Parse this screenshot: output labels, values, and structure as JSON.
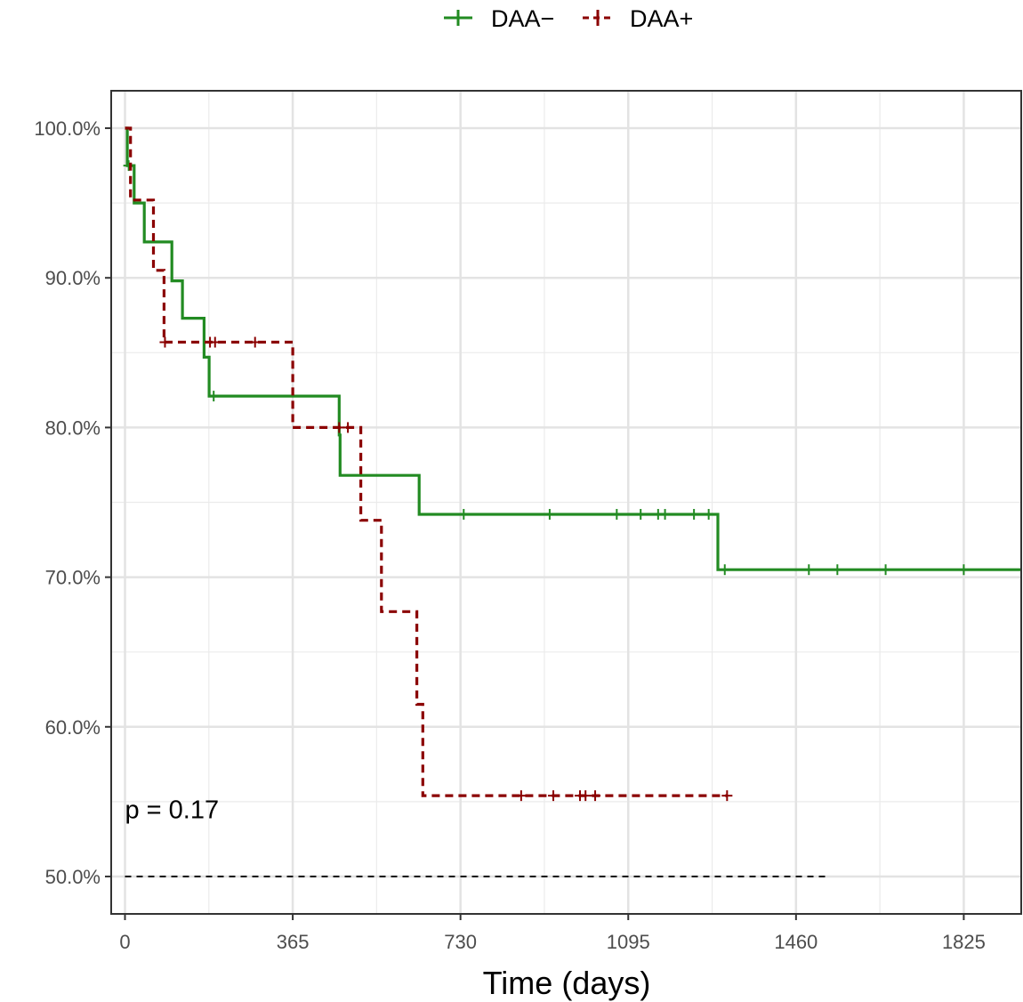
{
  "chart_data": {
    "type": "line",
    "subtype": "kaplan-meier survival curve",
    "xlabel": "Time (days)",
    "ylabel": "",
    "xlim": [
      -30,
      1950
    ],
    "ylim": [
      47.5,
      102.5
    ],
    "x_ticks": [
      0,
      365,
      730,
      1095,
      1460,
      1825
    ],
    "x_tick_labels": [
      "0",
      "365",
      "730",
      "1095",
      "1460",
      "1825"
    ],
    "y_ticks": [
      50,
      60,
      70,
      80,
      90,
      100
    ],
    "y_tick_labels": [
      "50.0%",
      "60.0%",
      "70.0%",
      "80.0%",
      "90.0%",
      "100.0%"
    ],
    "grid": true,
    "legend_position": "top",
    "series": [
      {
        "name": "DAA−",
        "color": "#228b22",
        "line_style": "solid",
        "steps": [
          [
            0,
            100.0
          ],
          [
            5,
            97.5
          ],
          [
            20,
            95.0
          ],
          [
            42,
            92.4
          ],
          [
            102,
            89.8
          ],
          [
            125,
            87.3
          ],
          [
            172,
            84.7
          ],
          [
            183,
            82.1
          ],
          [
            466,
            79.5
          ],
          [
            468,
            76.8
          ],
          [
            640,
            74.2
          ],
          [
            1290,
            70.5
          ],
          [
            1950,
            70.5
          ]
        ],
        "censored": [
          [
            8,
            97.5
          ],
          [
            193,
            82.1
          ],
          [
            737,
            74.2
          ],
          [
            924,
            74.2
          ],
          [
            1070,
            74.2
          ],
          [
            1122,
            74.2
          ],
          [
            1160,
            74.2
          ],
          [
            1175,
            74.2
          ],
          [
            1238,
            74.2
          ],
          [
            1270,
            74.2
          ],
          [
            1305,
            70.5
          ],
          [
            1488,
            70.5
          ],
          [
            1550,
            70.5
          ],
          [
            1655,
            70.5
          ],
          [
            1825,
            70.5
          ]
        ]
      },
      {
        "name": "DAA+",
        "color": "#8b0000",
        "line_style": "dashed",
        "steps": [
          [
            0,
            100.0
          ],
          [
            12,
            95.2
          ],
          [
            62,
            90.5
          ],
          [
            85,
            85.7
          ],
          [
            365,
            80.0
          ],
          [
            513,
            73.8
          ],
          [
            558,
            67.7
          ],
          [
            635,
            61.5
          ],
          [
            648,
            55.4
          ],
          [
            1310,
            55.4
          ]
        ],
        "censored": [
          [
            87,
            85.7
          ],
          [
            185,
            85.7
          ],
          [
            196,
            85.7
          ],
          [
            283,
            85.7
          ],
          [
            466,
            80.0
          ],
          [
            485,
            80.0
          ],
          [
            862,
            55.4
          ],
          [
            932,
            55.4
          ],
          [
            990,
            55.4
          ],
          [
            1002,
            55.4
          ],
          [
            1023,
            55.4
          ],
          [
            1310,
            55.4
          ]
        ]
      }
    ],
    "median_line": {
      "y": 50.0,
      "x_start": 0,
      "x_end": 1530
    },
    "annotations": [
      {
        "text": "p = 0.17",
        "x": 0,
        "y": 54.5
      }
    ]
  }
}
